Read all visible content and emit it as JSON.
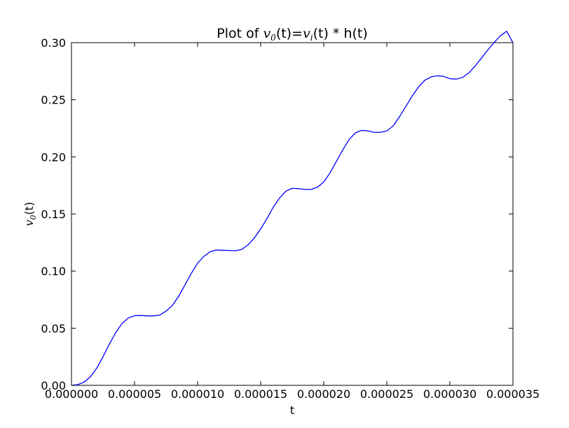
{
  "chart_data": {
    "type": "line",
    "title": {
      "prefix": "Plot of ",
      "var1_base": "v",
      "var1_sub": "0",
      "mid": "(t)=",
      "var2_base": "v",
      "var2_sub": "i",
      "suffix": "(t) * h(t)"
    },
    "xlabel": "t",
    "ylabel": {
      "base": "v",
      "sub": "0",
      "suffix": "(t)"
    },
    "xlim": [
      0,
      3.5e-05
    ],
    "ylim": [
      0,
      0.3
    ],
    "x_ticks": [
      "0.000000",
      "0.000005",
      "0.000010",
      "0.000015",
      "0.000020",
      "0.000025",
      "0.000030",
      "0.000035"
    ],
    "y_ticks": [
      "0.00",
      "0.05",
      "0.10",
      "0.15",
      "0.20",
      "0.25",
      "0.30"
    ],
    "grid": false,
    "series": [
      {
        "color": "#0000ff",
        "x": [
          0,
          5e-07,
          1e-06,
          1.5e-06,
          2e-06,
          2.5e-06,
          3e-06,
          3.5e-06,
          4e-06,
          4.5e-06,
          5e-06,
          5.5e-06,
          6e-06,
          6.5e-06,
          7e-06,
          7.5e-06,
          8e-06,
          8.5e-06,
          9e-06,
          9.5e-06,
          1e-05,
          1.05e-05,
          1.1e-05,
          1.15e-05,
          1.2e-05,
          1.25e-05,
          1.3e-05,
          1.35e-05,
          1.4e-05,
          1.45e-05,
          1.5e-05,
          1.55e-05,
          1.6e-05,
          1.65e-05,
          1.7e-05,
          1.75e-05,
          1.8e-05,
          1.85e-05,
          1.9e-05,
          1.95e-05,
          2e-05,
          2.05e-05,
          2.1e-05,
          2.15e-05,
          2.2e-05,
          2.25e-05,
          2.3e-05,
          2.35e-05,
          2.4e-05,
          2.45e-05,
          2.5e-05,
          2.55e-05,
          2.6e-05,
          2.65e-05,
          2.7e-05,
          2.75e-05,
          2.8e-05,
          2.85e-05,
          2.9e-05,
          2.95e-05,
          3e-05,
          3.05e-05,
          3.1e-05,
          3.15e-05,
          3.2e-05,
          3.25e-05,
          3.3e-05,
          3.35e-05,
          3.4e-05,
          3.45e-05,
          3.5e-05
        ],
        "y": [
          0,
          0.0006,
          0.0028,
          0.0075,
          0.015,
          0.025,
          0.036,
          0.046,
          0.054,
          0.059,
          0.061,
          0.0612,
          0.0608,
          0.0608,
          0.0615,
          0.065,
          0.07,
          0.078,
          0.088,
          0.098,
          0.107,
          0.113,
          0.117,
          0.1185,
          0.1182,
          0.118,
          0.1178,
          0.119,
          0.123,
          0.129,
          0.137,
          0.146,
          0.156,
          0.164,
          0.17,
          0.1725,
          0.1722,
          0.1715,
          0.1715,
          0.1735,
          0.178,
          0.186,
          0.196,
          0.206,
          0.215,
          0.221,
          0.2232,
          0.2228,
          0.2215,
          0.2215,
          0.2228,
          0.227,
          0.235,
          0.244,
          0.253,
          0.261,
          0.267,
          0.27,
          0.271,
          0.2705,
          0.2685,
          0.268,
          0.2695,
          0.2735,
          0.2795,
          0.2865,
          0.2935,
          0.3,
          0.306,
          0.31,
          0.3
        ]
      }
    ]
  }
}
